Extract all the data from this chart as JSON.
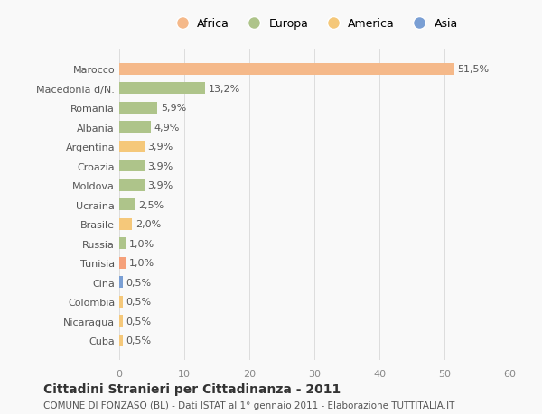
{
  "categories": [
    "Cuba",
    "Nicaragua",
    "Colombia",
    "Cina",
    "Tunisia",
    "Russia",
    "Brasile",
    "Ucraina",
    "Moldova",
    "Croazia",
    "Argentina",
    "Albania",
    "Romania",
    "Macedonia d/N.",
    "Marocco"
  ],
  "values": [
    0.5,
    0.5,
    0.5,
    0.5,
    1.0,
    1.0,
    2.0,
    2.5,
    3.9,
    3.9,
    3.9,
    4.9,
    5.9,
    13.2,
    51.5
  ],
  "labels": [
    "0,5%",
    "0,5%",
    "0,5%",
    "0,5%",
    "1,0%",
    "1,0%",
    "2,0%",
    "2,5%",
    "3,9%",
    "3,9%",
    "3,9%",
    "4,9%",
    "5,9%",
    "13,2%",
    "51,5%"
  ],
  "colors": [
    "#f5c87a",
    "#f5c87a",
    "#f5c87a",
    "#7a9fd4",
    "#f5a07a",
    "#aec48a",
    "#f5c87a",
    "#aec48a",
    "#aec48a",
    "#aec48a",
    "#f5c87a",
    "#aec48a",
    "#aec48a",
    "#aec48a",
    "#f5b98a"
  ],
  "legend_labels": [
    "Africa",
    "Europa",
    "America",
    "Asia"
  ],
  "legend_colors": [
    "#f5b98a",
    "#aec48a",
    "#f5c87a",
    "#7a9fd4"
  ],
  "title": "Cittadini Stranieri per Cittadinanza - 2011",
  "subtitle": "COMUNE DI FONZASO (BL) - Dati ISTAT al 1° gennaio 2011 - Elaborazione TUTTITALIA.IT",
  "xlim": [
    0,
    60
  ],
  "xticks": [
    0,
    10,
    20,
    30,
    40,
    50,
    60
  ],
  "bg_color": "#f9f9f9",
  "bar_height": 0.6
}
